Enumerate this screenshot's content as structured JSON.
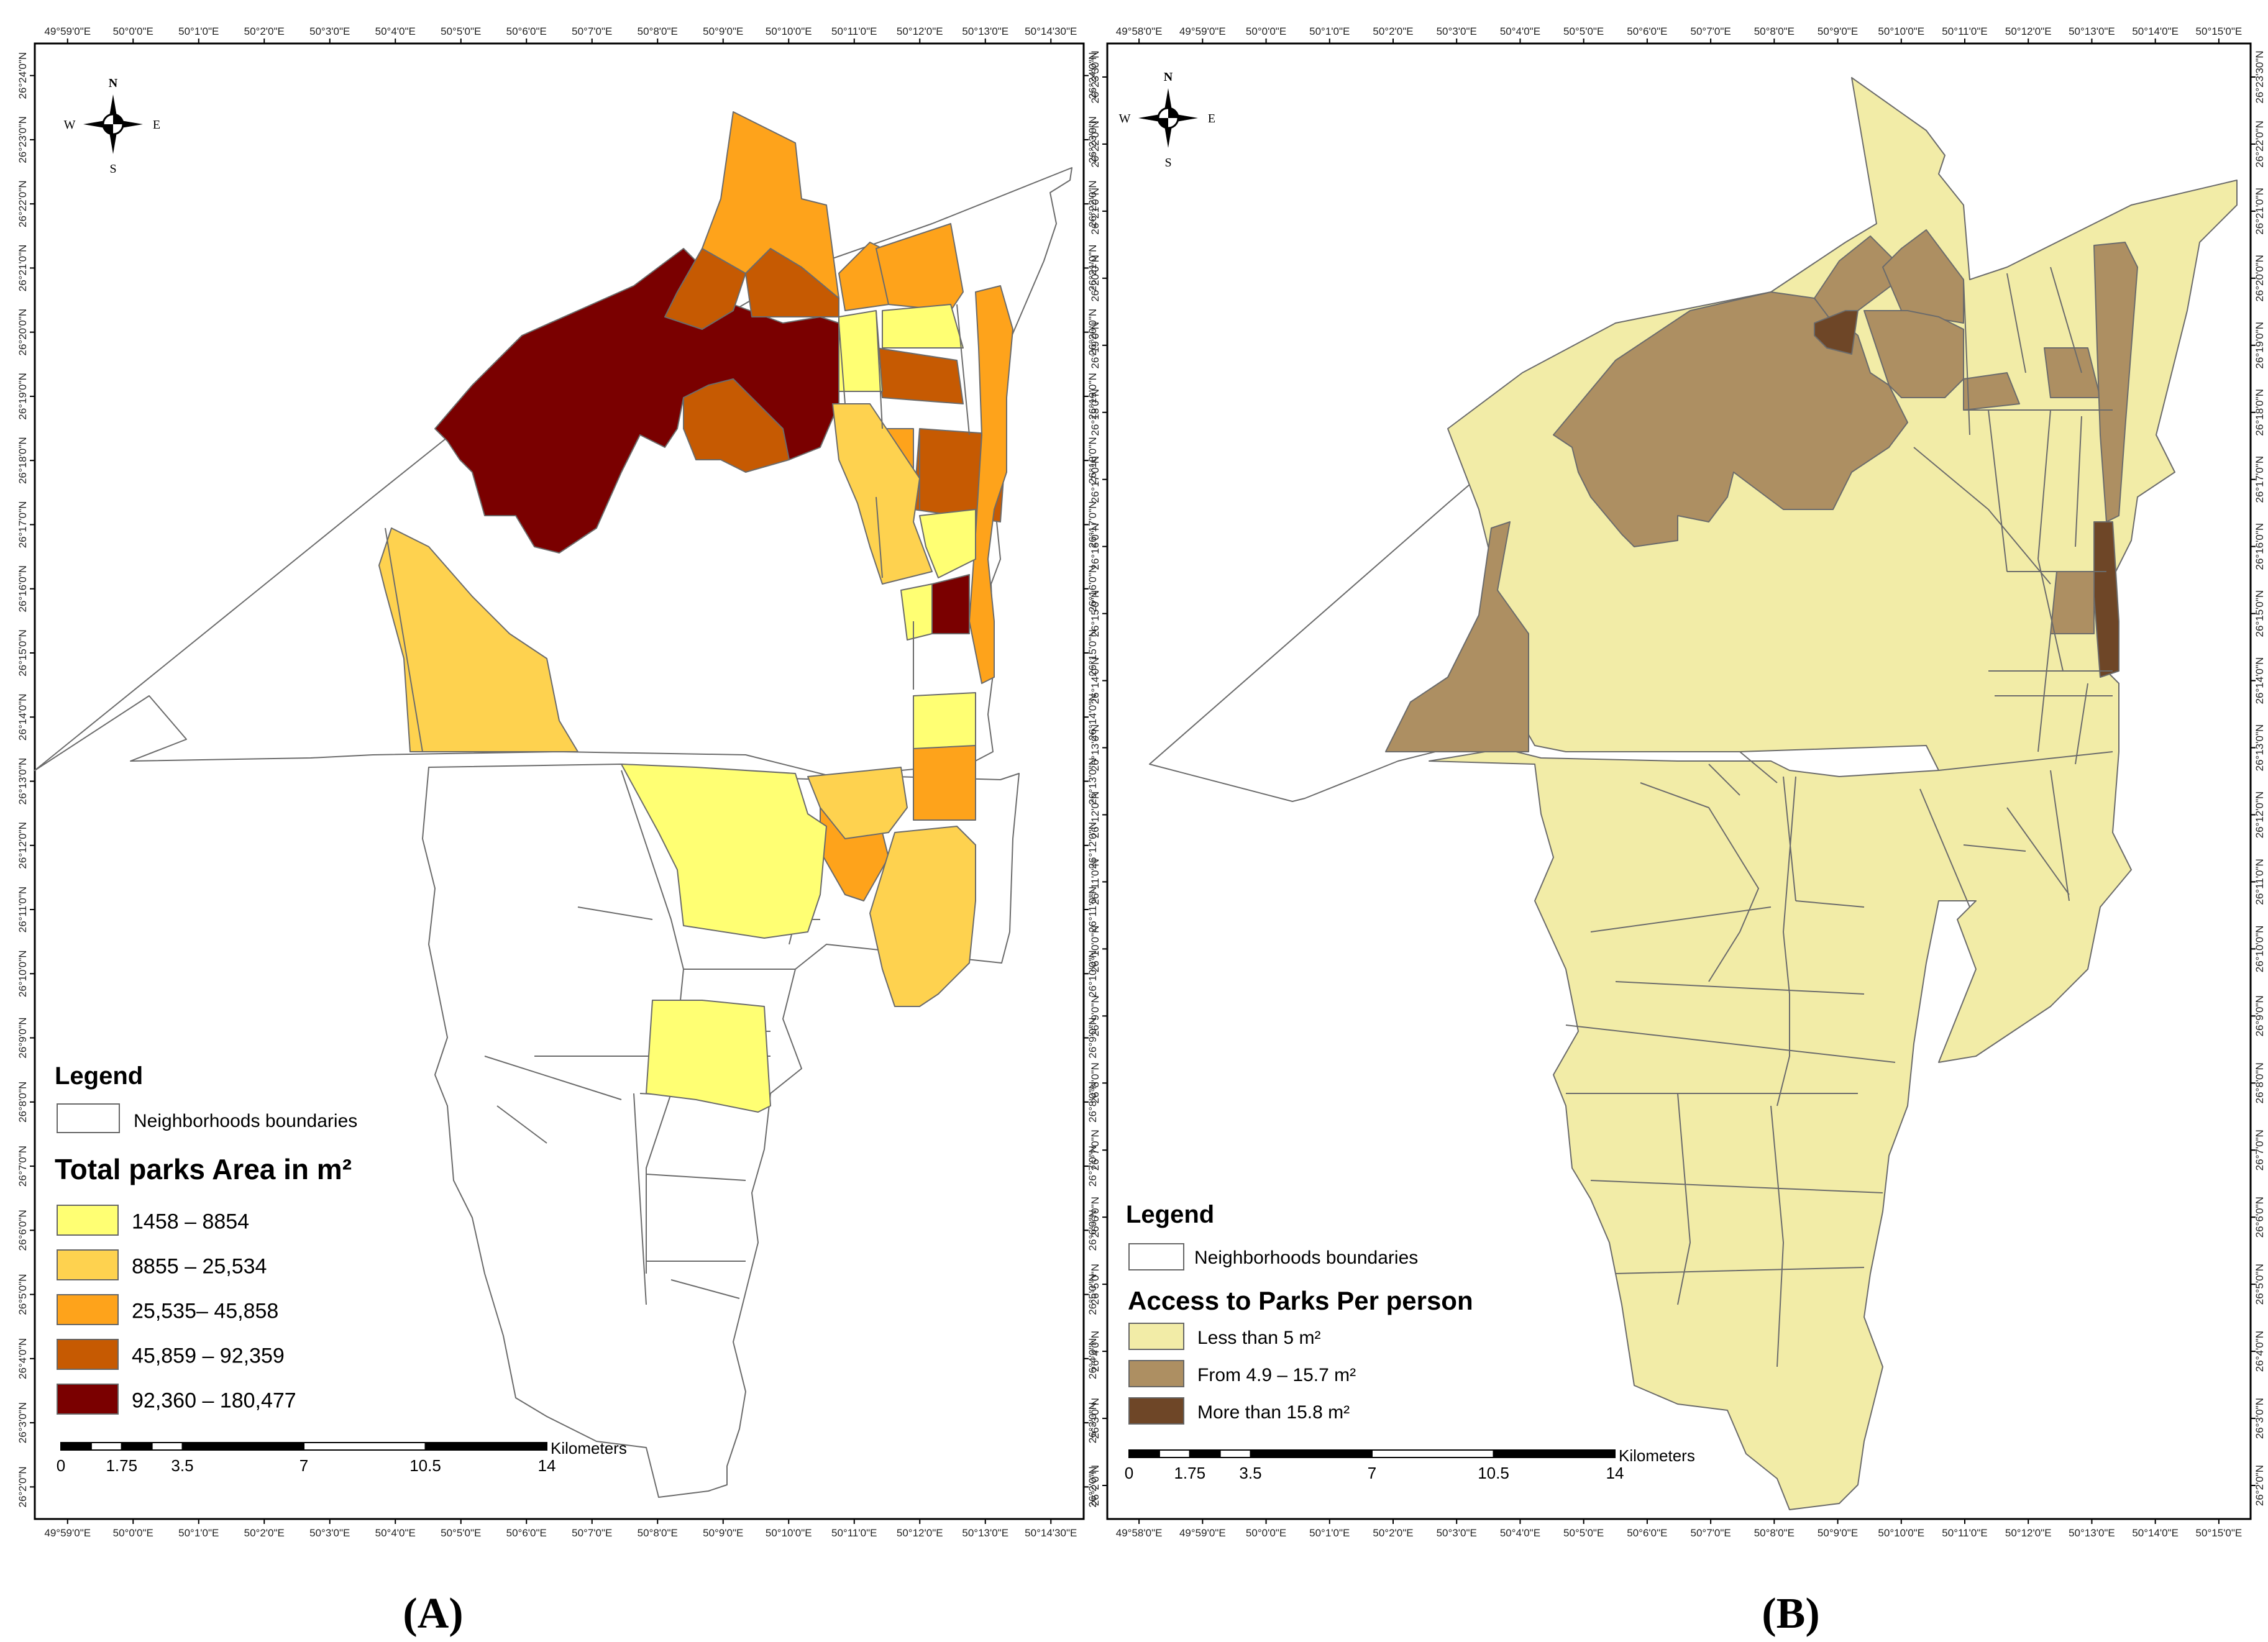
{
  "panels": [
    {
      "id": "A",
      "caption": "(A)",
      "compass": {
        "n": "N",
        "s": "S",
        "e": "E",
        "w": "W"
      },
      "lon_ticks_top": [
        "49°59'0\"E",
        "50°0'0\"E",
        "50°1'0\"E",
        "50°2'0\"E",
        "50°3'0\"E",
        "50°4'0\"E",
        "50°5'0\"E",
        "50°6'0\"E",
        "50°7'0\"E",
        "50°8'0\"E",
        "50°9'0\"E",
        "50°10'0\"E",
        "50°11'0\"E",
        "50°12'0\"E",
        "50°13'0\"E",
        "50°14'30\"E"
      ],
      "lon_ticks_bottom": [
        "49°59'0\"E",
        "50°0'0\"E",
        "50°1'0\"E",
        "50°2'0\"E",
        "50°3'0\"E",
        "50°4'0\"E",
        "50°5'0\"E",
        "50°6'0\"E",
        "50°7'0\"E",
        "50°8'0\"E",
        "50°9'0\"E",
        "50°10'0\"E",
        "50°11'0\"E",
        "50°12'0\"E",
        "50°13'0\"E",
        "50°14'30\"E"
      ],
      "lat_ticks": [
        "26°24'0\"N",
        "26°23'0\"N",
        "26°22'0\"N",
        "26°21'0\"N",
        "26°20'0\"N",
        "26°19'0\"N",
        "26°18'0\"N",
        "26°17'0\"N",
        "26°16'0\"N",
        "26°15'0\"N",
        "26°14'0\"N",
        "26°13'0\"N",
        "26°12'0\"N",
        "26°11'0\"N",
        "26°10'0\"N",
        "26°9'0\"N",
        "26°8'0\"N",
        "26°7'0\"N",
        "26°6'0\"N",
        "26°5'0\"N",
        "26°4'0\"N",
        "26°3'0\"N",
        "26°2'0\"N"
      ],
      "legend": {
        "heading": "Legend",
        "boundary_label": "Neighborhoods boundaries",
        "title": "Total parks Area in m²",
        "classes": [
          {
            "label": "1458 – 8854",
            "color": "#ffff73"
          },
          {
            "label": "8855 – 25,534",
            "color": "#fed24f"
          },
          {
            "label": "25,535– 45,858",
            "color": "#fea31b"
          },
          {
            "label": "45,859 – 92,359",
            "color": "#c65a02"
          },
          {
            "label": "92,360 – 180,477",
            "color": "#7a0000"
          }
        ]
      },
      "scalebar": {
        "labels": [
          "0",
          "1.75",
          "3.5",
          "7",
          "10.5",
          "14"
        ],
        "unit": "Kilometers"
      }
    },
    {
      "id": "B",
      "caption": "(B)",
      "compass": {
        "n": "N",
        "s": "S",
        "e": "E",
        "w": "W"
      },
      "lon_ticks_top": [
        "49°58'0\"E",
        "49°59'0\"E",
        "50°0'0\"E",
        "50°1'0\"E",
        "50°2'0\"E",
        "50°3'0\"E",
        "50°4'0\"E",
        "50°5'0\"E",
        "50°6'0\"E",
        "50°7'0\"E",
        "50°8'0\"E",
        "50°9'0\"E",
        "50°10'0\"E",
        "50°11'0\"E",
        "50°12'0\"E",
        "50°13'0\"E",
        "50°14'0\"E",
        "50°15'0\"E"
      ],
      "lon_ticks_bottom": [
        "49°58'0\"E",
        "49°59'0\"E",
        "50°0'0\"E",
        "50°1'0\"E",
        "50°2'0\"E",
        "50°3'0\"E",
        "50°4'0\"E",
        "50°5'0\"E",
        "50°6'0\"E",
        "50°7'0\"E",
        "50°8'0\"E",
        "50°9'0\"E",
        "50°10'0\"E",
        "50°11'0\"E",
        "50°12'0\"E",
        "50°13'0\"E",
        "50°14'0\"E",
        "50°15'0\"E"
      ],
      "lat_ticks": [
        "26°23'30\"N",
        "26°22'0\"N",
        "26°21'0\"N",
        "26°20'0\"N",
        "26°19'0\"N",
        "26°18'0\"N",
        "26°17'0\"N",
        "26°16'0\"N",
        "26°15'0\"N",
        "26°14'0\"N",
        "26°13'0\"N",
        "26°12'0\"N",
        "26°11'0\"N",
        "26°10'0\"N",
        "26°9'0\"N",
        "26°8'0\"N",
        "26°7'0\"N",
        "26°6'0\"N",
        "26°5'0\"N",
        "26°4'0\"N",
        "26°3'0\"N",
        "26°2'0\"N"
      ],
      "legend": {
        "heading": "Legend",
        "boundary_label": "Neighborhoods boundaries",
        "title": "Access to Parks Per person",
        "classes": [
          {
            "label": "Less than 5 m²",
            "color": "#f2eca7"
          },
          {
            "label": "From 4.9 – 15.7 m²",
            "color": "#ad8f62"
          },
          {
            "label": "More than 15.8 m²",
            "color": "#6e4627"
          }
        ]
      },
      "scalebar": {
        "labels": [
          "0",
          "1.75",
          "3.5",
          "7",
          "10.5",
          "14"
        ],
        "unit": "Kilometers"
      }
    }
  ]
}
